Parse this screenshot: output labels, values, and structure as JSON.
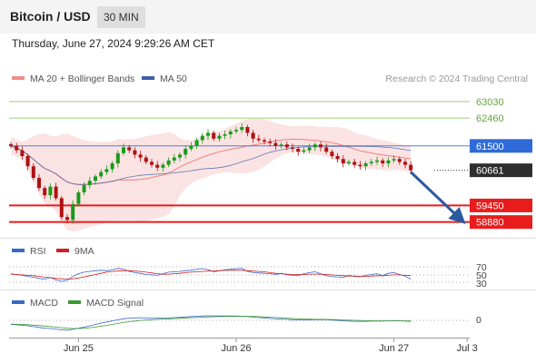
{
  "header": {
    "title": "Bitcoin / USD",
    "timeframe": "30 MIN",
    "datetime": "Thursday, June 27, 2024 9:29:26 AM CET"
  },
  "chart_data": [
    {
      "type": "candlestick",
      "legend": [
        {
          "name": "MA 20 + Bollinger Bands",
          "color": "#f28b8b"
        },
        {
          "name": "MA 50",
          "color": "#3a5ea8"
        }
      ],
      "legend_placement": "top-left",
      "credit": "Research © 2024 Trading Central",
      "ylim": [
        58400,
        63400
      ],
      "x_ticks": [
        {
          "label": "Jun 25",
          "index": 12
        },
        {
          "label": "Jun 26",
          "index": 40
        },
        {
          "label": "Jun 27",
          "index": 68
        },
        {
          "label": "Jul 3",
          "index": 81
        }
      ],
      "close": [
        61500,
        61350,
        61150,
        60800,
        60400,
        60050,
        59800,
        60100,
        59700,
        59050,
        58950,
        59500,
        59900,
        60150,
        60300,
        60450,
        60600,
        60700,
        60900,
        61250,
        61450,
        61350,
        61200,
        61100,
        60950,
        60850,
        60750,
        60850,
        61000,
        61100,
        61200,
        61400,
        61500,
        61700,
        61850,
        61950,
        61750,
        61850,
        61900,
        62000,
        62050,
        62150,
        61950,
        61750,
        61700,
        61650,
        61600,
        61500,
        61550,
        61450,
        61400,
        61300,
        61350,
        61450,
        61550,
        61450,
        61300,
        61150,
        61050,
        60900,
        60950,
        60850,
        60800,
        60900,
        60950,
        61000,
        60900,
        61000,
        61050,
        60950,
        60850,
        60661
      ],
      "support_resistance": [
        63030,
        62460,
        61500,
        60661,
        59450,
        58880
      ],
      "resistance_levels": [
        "63030",
        "62460"
      ],
      "ma50_level": "61500",
      "last_price": "60661",
      "support_levels": [
        "59450",
        "58880"
      ],
      "forecast_arrow": {
        "from_index": 71,
        "from_value": 60661,
        "to_index": 80,
        "to_value": 58880
      }
    },
    {
      "type": "line",
      "legend": [
        {
          "name": "RSI",
          "color": "#3a68c9"
        },
        {
          "name": "9MA",
          "color": "#d12020"
        }
      ],
      "ylim": [
        20,
        80
      ],
      "levels": [
        "70",
        "50",
        "30"
      ],
      "rsi": [
        52,
        50,
        48,
        45,
        43,
        40,
        38,
        42,
        36,
        32,
        35,
        45,
        52,
        56,
        58,
        60,
        61,
        60,
        62,
        66,
        64,
        58,
        55,
        53,
        50,
        49,
        48,
        52,
        56,
        57,
        58,
        60,
        61,
        64,
        65,
        63,
        57,
        60,
        62,
        64,
        65,
        66,
        58,
        55,
        54,
        53,
        52,
        50,
        53,
        49,
        48,
        47,
        52,
        55,
        57,
        52,
        47,
        45,
        44,
        42,
        48,
        45,
        44,
        48,
        50,
        52,
        47,
        53,
        55,
        50,
        46,
        38
      ],
      "ma9": [
        51,
        50,
        49,
        48,
        47,
        45,
        43,
        42,
        40,
        39,
        38,
        39,
        41,
        44,
        47,
        50,
        53,
        56,
        58,
        59,
        60,
        60,
        59,
        58,
        56,
        54,
        52,
        51,
        51,
        52,
        53,
        55,
        56,
        57,
        58,
        59,
        59,
        60,
        61,
        61,
        61,
        61,
        60,
        59,
        58,
        57,
        55,
        53,
        52,
        51,
        50,
        50,
        50,
        51,
        51,
        51,
        50,
        49,
        48,
        47,
        46,
        46,
        45,
        45,
        46,
        47,
        47,
        48,
        49,
        49,
        48,
        47
      ]
    },
    {
      "type": "line",
      "legend": [
        {
          "name": "MACD",
          "color": "#3a68c9"
        },
        {
          "name": "MACD Signal",
          "color": "#3a9a30"
        }
      ],
      "ylim": [
        -700,
        450
      ],
      "zero_label": "0",
      "macd": [
        -150,
        -160,
        -180,
        -200,
        -230,
        -260,
        -290,
        -300,
        -320,
        -350,
        -360,
        -330,
        -290,
        -250,
        -200,
        -150,
        -100,
        -60,
        -20,
        20,
        60,
        80,
        90,
        95,
        90,
        85,
        80,
        85,
        90,
        100,
        110,
        125,
        140,
        150,
        160,
        170,
        165,
        165,
        160,
        160,
        158,
        155,
        140,
        120,
        100,
        85,
        70,
        55,
        45,
        35,
        25,
        15,
        10,
        15,
        20,
        25,
        20,
        10,
        -5,
        -20,
        -30,
        -35,
        -38,
        -35,
        -30,
        -25,
        -25,
        -20,
        -15,
        -20,
        -25,
        -40
      ],
      "signal": [
        -140,
        -145,
        -150,
        -160,
        -175,
        -190,
        -210,
        -230,
        -250,
        -270,
        -290,
        -300,
        -300,
        -290,
        -270,
        -245,
        -215,
        -185,
        -150,
        -115,
        -80,
        -50,
        -25,
        -5,
        10,
        25,
        35,
        45,
        55,
        65,
        75,
        85,
        95,
        105,
        115,
        125,
        132,
        138,
        142,
        146,
        148,
        150,
        148,
        143,
        135,
        125,
        115,
        103,
        92,
        80,
        68,
        58,
        48,
        42,
        38,
        35,
        32,
        28,
        22,
        15,
        8,
        0,
        -8,
        -14,
        -18,
        -20,
        -21,
        -21,
        -20,
        -20,
        -21,
        -24
      ]
    }
  ]
}
